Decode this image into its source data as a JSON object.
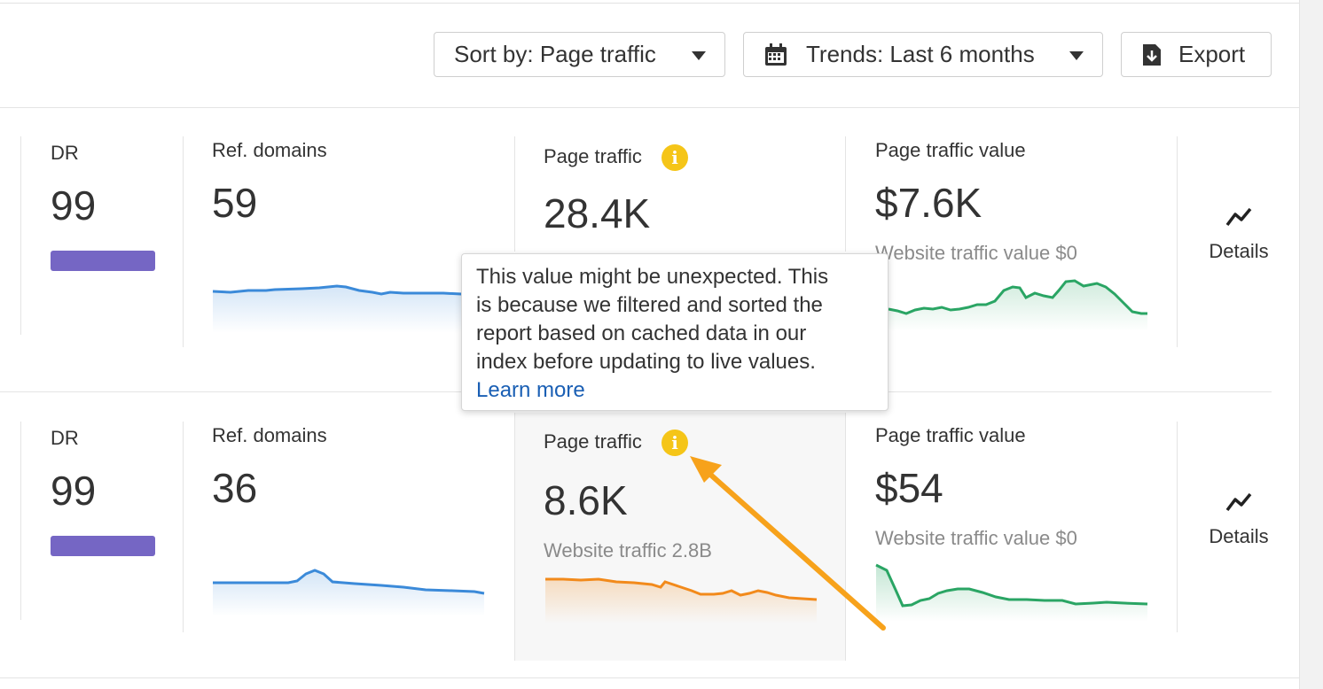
{
  "toolbar": {
    "sort_label": "Sort by: Page traffic",
    "trends_label": "Trends: Last 6 months",
    "export_label": "Export"
  },
  "rows": [
    {
      "dr_label": "DR",
      "dr_value": "99",
      "ref_label": "Ref. domains",
      "ref_value": "59",
      "traffic_label": "Page traffic",
      "traffic_value": "28.4K",
      "value_label": "Page traffic value",
      "value_value": "$7.6K",
      "value_sub": "Website traffic value $0",
      "details_label": "Details"
    },
    {
      "dr_label": "DR",
      "dr_value": "99",
      "ref_label": "Ref. domains",
      "ref_value": "36",
      "traffic_label": "Page traffic",
      "traffic_value": "8.6K",
      "traffic_sub": "Website traffic 2.8B",
      "value_label": "Page traffic value",
      "value_value": "$54",
      "value_sub": "Website traffic value $0",
      "details_label": "Details"
    }
  ],
  "tooltip": {
    "line1": "This value might be unexpected. This",
    "line2": "is because we filtered and sorted the",
    "line3": "report based on cached data in our",
    "line4": "index before updating to live values.",
    "link": "Learn more"
  },
  "colors": {
    "ref_line": "#3b8ad9",
    "traffic_line": "#f28a1b",
    "value_line": "#2aa564",
    "dr_bar": "#7566c4",
    "info": "#f5c518",
    "annotation_arrow": "#f7a21b"
  },
  "icons": {
    "sort_caret": "caret-down-icon",
    "calendar": "calendar-icon",
    "export": "download-file-icon",
    "info": "info-icon",
    "details": "trend-line-icon"
  }
}
